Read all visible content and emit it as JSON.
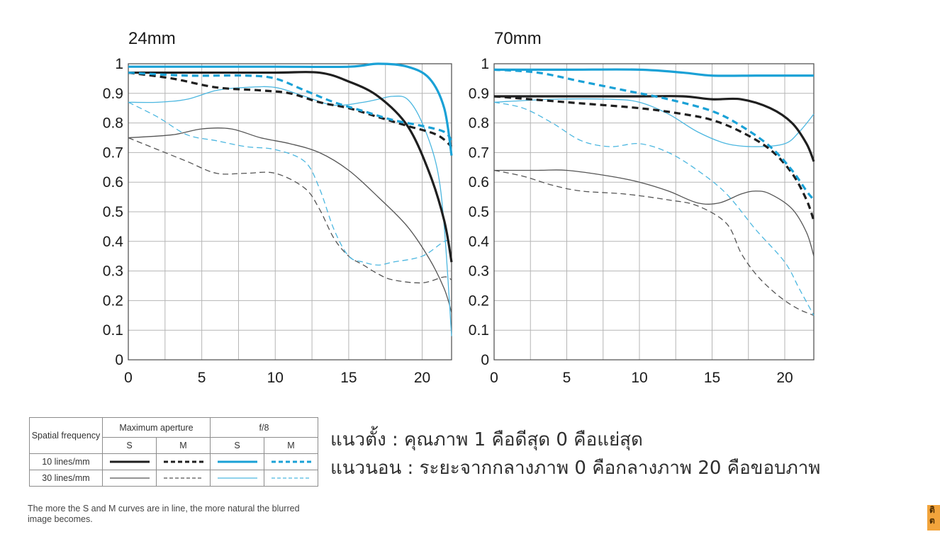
{
  "chart_data": [
    {
      "type": "line",
      "title": "24mm",
      "xlim": [
        0,
        22
      ],
      "ylim": [
        0,
        1
      ],
      "x_ticks": [
        "0",
        "5",
        "10",
        "15",
        "20"
      ],
      "y_ticks": [
        "0",
        "0.1",
        "0.2",
        "0.3",
        "0.4",
        "0.5",
        "0.6",
        "0.7",
        "0.8",
        "0.9",
        "1"
      ],
      "grid": true,
      "series": [
        {
          "key": "max-s-10",
          "color": "#1f1f1f",
          "width": 3.2,
          "dash": "",
          "points": [
            [
              0,
              0.97
            ],
            [
              5,
              0.97
            ],
            [
              10,
              0.97
            ],
            [
              13,
              0.97
            ],
            [
              15,
              0.94
            ],
            [
              17,
              0.89
            ],
            [
              19,
              0.79
            ],
            [
              20.5,
              0.63
            ],
            [
              21.5,
              0.47
            ],
            [
              22,
              0.33
            ]
          ]
        },
        {
          "key": "max-m-10",
          "color": "#1f1f1f",
          "width": 3.2,
          "dash": "9 6",
          "points": [
            [
              0,
              0.97
            ],
            [
              3,
              0.95
            ],
            [
              6,
              0.92
            ],
            [
              9,
              0.91
            ],
            [
              11,
              0.9
            ],
            [
              13,
              0.87
            ],
            [
              15,
              0.85
            ],
            [
              17,
              0.82
            ],
            [
              19,
              0.79
            ],
            [
              21,
              0.76
            ],
            [
              22,
              0.72
            ]
          ]
        },
        {
          "key": "f8-s-10",
          "color": "#1aa1d6",
          "width": 3.2,
          "dash": "",
          "points": [
            [
              0,
              0.99
            ],
            [
              5,
              0.99
            ],
            [
              10,
              0.99
            ],
            [
              15,
              0.99
            ],
            [
              17,
              1.0
            ],
            [
              19,
              0.99
            ],
            [
              20.5,
              0.95
            ],
            [
              21.5,
              0.85
            ],
            [
              22,
              0.69
            ]
          ]
        },
        {
          "key": "f8-m-10",
          "color": "#1aa1d6",
          "width": 3.2,
          "dash": "9 6",
          "points": [
            [
              0,
              0.97
            ],
            [
              4,
              0.96
            ],
            [
              8,
              0.96
            ],
            [
              10,
              0.95
            ],
            [
              12,
              0.91
            ],
            [
              14,
              0.87
            ],
            [
              16,
              0.84
            ],
            [
              18,
              0.81
            ],
            [
              20,
              0.79
            ],
            [
              21.5,
              0.77
            ],
            [
              22,
              0.74
            ]
          ]
        },
        {
          "key": "max-s-30",
          "color": "#555555",
          "width": 1.3,
          "dash": "",
          "points": [
            [
              0,
              0.75
            ],
            [
              3,
              0.76
            ],
            [
              5,
              0.78
            ],
            [
              7,
              0.78
            ],
            [
              9,
              0.75
            ],
            [
              11,
              0.73
            ],
            [
              13,
              0.7
            ],
            [
              15,
              0.64
            ],
            [
              17,
              0.55
            ],
            [
              19,
              0.45
            ],
            [
              20.5,
              0.34
            ],
            [
              21.5,
              0.24
            ],
            [
              22,
              0.16
            ]
          ]
        },
        {
          "key": "max-m-30",
          "color": "#555555",
          "width": 1.3,
          "dash": "8 5",
          "points": [
            [
              0,
              0.75
            ],
            [
              2,
              0.71
            ],
            [
              4,
              0.67
            ],
            [
              6,
              0.63
            ],
            [
              8,
              0.63
            ],
            [
              10,
              0.63
            ],
            [
              12,
              0.58
            ],
            [
              13,
              0.51
            ],
            [
              14,
              0.41
            ],
            [
              15,
              0.35
            ],
            [
              16,
              0.32
            ],
            [
              17,
              0.29
            ],
            [
              18,
              0.27
            ],
            [
              20,
              0.26
            ],
            [
              21.5,
              0.28
            ],
            [
              22,
              0.27
            ]
          ]
        },
        {
          "key": "f8-s-30",
          "color": "#4cb7e0",
          "width": 1.3,
          "dash": "",
          "points": [
            [
              0,
              0.87
            ],
            [
              2,
              0.87
            ],
            [
              4,
              0.88
            ],
            [
              6,
              0.91
            ],
            [
              8,
              0.92
            ],
            [
              10,
              0.92
            ],
            [
              12,
              0.89
            ],
            [
              14,
              0.86
            ],
            [
              16,
              0.87
            ],
            [
              17,
              0.88
            ],
            [
              18,
              0.89
            ],
            [
              19,
              0.88
            ],
            [
              20,
              0.8
            ],
            [
              21,
              0.65
            ],
            [
              21.5,
              0.45
            ],
            [
              22,
              0.08
            ]
          ]
        },
        {
          "key": "f8-m-30",
          "color": "#4cb7e0",
          "width": 1.3,
          "dash": "8 5",
          "points": [
            [
              0,
              0.87
            ],
            [
              2,
              0.82
            ],
            [
              4,
              0.76
            ],
            [
              6,
              0.74
            ],
            [
              8,
              0.72
            ],
            [
              10,
              0.71
            ],
            [
              12,
              0.67
            ],
            [
              13,
              0.58
            ],
            [
              14,
              0.44
            ],
            [
              15,
              0.35
            ],
            [
              16,
              0.33
            ],
            [
              17,
              0.32
            ],
            [
              18,
              0.33
            ],
            [
              20,
              0.35
            ],
            [
              21.5,
              0.4
            ],
            [
              22,
              0.4
            ]
          ]
        }
      ]
    },
    {
      "type": "line",
      "title": "70mm",
      "xlim": [
        0,
        22
      ],
      "ylim": [
        0,
        1
      ],
      "x_ticks": [
        "0",
        "5",
        "10",
        "15",
        "20"
      ],
      "y_ticks": [
        "0",
        "0.1",
        "0.2",
        "0.3",
        "0.4",
        "0.5",
        "0.6",
        "0.7",
        "0.8",
        "0.9",
        "1"
      ],
      "grid": true,
      "series": [
        {
          "key": "max-s-10",
          "color": "#1f1f1f",
          "width": 3.2,
          "dash": "",
          "points": [
            [
              0,
              0.89
            ],
            [
              5,
              0.89
            ],
            [
              10,
              0.89
            ],
            [
              13,
              0.89
            ],
            [
              15,
              0.88
            ],
            [
              17,
              0.88
            ],
            [
              19,
              0.85
            ],
            [
              20.5,
              0.8
            ],
            [
              21.5,
              0.73
            ],
            [
              22,
              0.67
            ]
          ]
        },
        {
          "key": "max-m-10",
          "color": "#1f1f1f",
          "width": 3.2,
          "dash": "9 6",
          "points": [
            [
              0,
              0.89
            ],
            [
              5,
              0.87
            ],
            [
              10,
              0.85
            ],
            [
              13,
              0.83
            ],
            [
              15,
              0.81
            ],
            [
              17,
              0.77
            ],
            [
              19,
              0.71
            ],
            [
              20.5,
              0.63
            ],
            [
              21.5,
              0.54
            ],
            [
              22,
              0.47
            ]
          ]
        },
        {
          "key": "f8-s-10",
          "color": "#1aa1d6",
          "width": 3.2,
          "dash": "",
          "points": [
            [
              0,
              0.98
            ],
            [
              5,
              0.98
            ],
            [
              10,
              0.98
            ],
            [
              13,
              0.97
            ],
            [
              15,
              0.96
            ],
            [
              18,
              0.96
            ],
            [
              20,
              0.96
            ],
            [
              22,
              0.96
            ]
          ]
        },
        {
          "key": "f8-m-10",
          "color": "#1aa1d6",
          "width": 3.2,
          "dash": "9 6",
          "points": [
            [
              0,
              0.98
            ],
            [
              3,
              0.97
            ],
            [
              6,
              0.94
            ],
            [
              9,
              0.91
            ],
            [
              12,
              0.88
            ],
            [
              15,
              0.84
            ],
            [
              17,
              0.79
            ],
            [
              19,
              0.72
            ],
            [
              20.5,
              0.64
            ],
            [
              21.5,
              0.57
            ],
            [
              22,
              0.54
            ]
          ]
        },
        {
          "key": "max-s-30",
          "color": "#555555",
          "width": 1.3,
          "dash": "",
          "points": [
            [
              0,
              0.64
            ],
            [
              3,
              0.64
            ],
            [
              5,
              0.64
            ],
            [
              8,
              0.62
            ],
            [
              10,
              0.6
            ],
            [
              12,
              0.57
            ],
            [
              14,
              0.53
            ],
            [
              15.5,
              0.53
            ],
            [
              17,
              0.56
            ],
            [
              18,
              0.57
            ],
            [
              19,
              0.56
            ],
            [
              20.5,
              0.51
            ],
            [
              21.5,
              0.43
            ],
            [
              22,
              0.35
            ]
          ]
        },
        {
          "key": "max-m-30",
          "color": "#555555",
          "width": 1.3,
          "dash": "8 5",
          "points": [
            [
              0,
              0.64
            ],
            [
              2,
              0.62
            ],
            [
              4,
              0.59
            ],
            [
              6,
              0.57
            ],
            [
              9,
              0.56
            ],
            [
              12,
              0.54
            ],
            [
              14,
              0.52
            ],
            [
              16,
              0.46
            ],
            [
              17,
              0.36
            ],
            [
              18,
              0.29
            ],
            [
              19,
              0.24
            ],
            [
              20,
              0.2
            ],
            [
              21,
              0.17
            ],
            [
              22,
              0.15
            ]
          ]
        },
        {
          "key": "f8-s-30",
          "color": "#4cb7e0",
          "width": 1.3,
          "dash": "",
          "points": [
            [
              0,
              0.87
            ],
            [
              4,
              0.88
            ],
            [
              8,
              0.88
            ],
            [
              10,
              0.87
            ],
            [
              12,
              0.83
            ],
            [
              14,
              0.77
            ],
            [
              16,
              0.73
            ],
            [
              18,
              0.72
            ],
            [
              20,
              0.73
            ],
            [
              21,
              0.77
            ],
            [
              22,
              0.83
            ]
          ]
        },
        {
          "key": "f8-m-30",
          "color": "#4cb7e0",
          "width": 1.3,
          "dash": "8 5",
          "points": [
            [
              0,
              0.87
            ],
            [
              2,
              0.85
            ],
            [
              4,
              0.8
            ],
            [
              6,
              0.74
            ],
            [
              8,
              0.72
            ],
            [
              10,
              0.73
            ],
            [
              12,
              0.7
            ],
            [
              14,
              0.64
            ],
            [
              16,
              0.56
            ],
            [
              18,
              0.44
            ],
            [
              20,
              0.33
            ],
            [
              21,
              0.24
            ],
            [
              22,
              0.15
            ]
          ]
        }
      ]
    }
  ],
  "legend": {
    "spatial_frequency_label": "Spatial frequency",
    "max_aperture_label": "Maximum aperture",
    "f8_label": "f/8",
    "s_label": "S",
    "m_label": "M",
    "row_10_label": "10 lines/mm",
    "row_30_label": "30 lines/mm",
    "colors": {
      "black": "#1f1f1f",
      "blue": "#1aa1d6",
      "gray": "#555555",
      "lightblue": "#4cb7e0"
    }
  },
  "note": "The more the S and M curves are in line, the more natural the blurred image becomes.",
  "explanation": {
    "vertical": "แนวตั้ง  : คุณภาพ  1 คือดีสุด 0 คือแย่สุด",
    "horizontal": "แนวนอน : ระยะจากกลางภาพ  0 คือกลางภาพ 20 คือขอบภาพ"
  },
  "badge_text": "ติ ต"
}
